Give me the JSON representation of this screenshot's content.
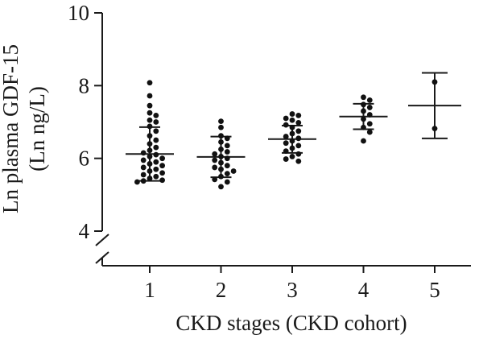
{
  "chart_data": {
    "type": "scatter",
    "title": "",
    "xlabel": "CKD stages (CKD cohort)",
    "ylabel_line1": "Ln plasma GDF-15",
    "ylabel_line2": "(Ln ng/L)",
    "categories": [
      "1",
      "2",
      "3",
      "4",
      "5"
    ],
    "y_ticks": [
      "4",
      "6",
      "8",
      "10"
    ],
    "ylim": [
      4,
      10
    ],
    "y_axis_break": true,
    "grid": false,
    "groups": [
      {
        "category": "1",
        "mean": 6.12,
        "sd_low": 5.38,
        "sd_high": 6.86,
        "points": [
          8.08,
          7.72,
          7.45,
          7.25,
          7.18,
          7.05,
          7.0,
          6.88,
          6.75,
          6.62,
          6.5,
          6.4,
          6.3,
          6.22,
          6.15,
          6.1,
          6.05,
          6.0,
          5.95,
          5.9,
          5.85,
          5.8,
          5.75,
          5.7,
          5.65,
          5.6,
          5.55,
          5.5,
          5.45,
          5.4,
          5.38,
          5.35
        ]
      },
      {
        "category": "2",
        "mean": 6.04,
        "sd_low": 5.48,
        "sd_high": 6.6,
        "points": [
          7.02,
          6.85,
          6.62,
          6.55,
          6.45,
          6.35,
          6.25,
          6.18,
          6.12,
          6.05,
          6.0,
          5.95,
          5.88,
          5.8,
          5.75,
          5.7,
          5.65,
          5.58,
          5.5,
          5.42,
          5.35,
          5.22
        ]
      },
      {
        "category": "3",
        "mean": 6.53,
        "sd_low": 6.15,
        "sd_high": 6.9,
        "points": [
          7.22,
          7.18,
          7.1,
          7.05,
          6.98,
          6.92,
          6.85,
          6.75,
          6.68,
          6.6,
          6.55,
          6.48,
          6.42,
          6.35,
          6.28,
          6.2,
          6.12,
          6.05,
          5.98,
          5.92
        ]
      },
      {
        "category": "4",
        "mean": 7.15,
        "sd_low": 6.8,
        "sd_high": 7.5,
        "points": [
          7.68,
          7.6,
          7.48,
          7.4,
          7.3,
          7.2,
          7.08,
          6.95,
          6.85,
          6.72,
          6.48
        ]
      },
      {
        "category": "5",
        "mean": 7.45,
        "sd_low": 6.55,
        "sd_high": 8.35,
        "points": [
          8.1,
          6.82
        ]
      }
    ]
  }
}
